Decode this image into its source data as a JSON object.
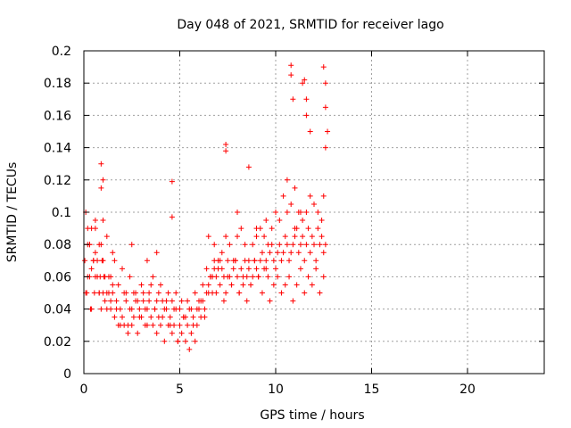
{
  "chart_data": {
    "type": "scatter",
    "title": "Day 048 of 2021, SRMTID for receiver lago",
    "xlabel": "GPS time / hours",
    "ylabel": "SRMTID / TECUs",
    "xlim": [
      0,
      24
    ],
    "ylim": [
      0,
      0.2
    ],
    "grid": true,
    "marker": "+",
    "colors": {
      "points": "#ff0000",
      "grid": "#a0a0a0",
      "axis": "#000000"
    },
    "x_ticks": [
      0,
      5,
      10,
      15,
      20
    ],
    "x_tick_labels": [
      "0",
      "5",
      "10",
      "15",
      "20"
    ],
    "y_ticks": [
      0,
      0.02,
      0.04,
      0.06,
      0.08,
      0.1,
      0.12,
      0.14,
      0.16,
      0.18,
      0.2
    ],
    "y_tick_labels": [
      "0",
      "0.02",
      "0.04",
      "0.06",
      "0.08",
      "0.1",
      "0.12",
      "0.14",
      "0.16",
      "0.18",
      "0.2"
    ],
    "series": [
      {
        "name": "SRMTID",
        "x": [
          0.05,
          0.1,
          0.15,
          0.2,
          0.3,
          0.35,
          0.4,
          0.5,
          0.55,
          0.6,
          0.7,
          0.8,
          0.85,
          0.9,
          0.95,
          1.0,
          1.05,
          1.1,
          1.2,
          1.3,
          1.4,
          1.5,
          1.6,
          1.7,
          1.8,
          1.9,
          2.0,
          2.1,
          2.2,
          2.3,
          2.4,
          2.5,
          2.6,
          2.7,
          2.8,
          2.9,
          3.0,
          3.1,
          3.2,
          3.3,
          3.4,
          3.5,
          3.6,
          3.7,
          3.8,
          3.9,
          4.0,
          4.1,
          4.2,
          4.3,
          4.4,
          4.5,
          4.6,
          4.7,
          4.8,
          4.9,
          5.0,
          5.1,
          5.2,
          5.3,
          5.4,
          5.5,
          5.6,
          5.7,
          5.8,
          5.9,
          6.0,
          6.1,
          6.2,
          6.3,
          6.4,
          6.5,
          6.6,
          6.7,
          6.8,
          6.9,
          7.0,
          7.1,
          7.2,
          7.3,
          7.4,
          7.5,
          7.6,
          7.7,
          7.8,
          7.9,
          8.0,
          8.1,
          8.2,
          8.3,
          8.4,
          8.5,
          8.6,
          8.7,
          8.8,
          8.9,
          9.0,
          9.1,
          9.2,
          9.3,
          9.4,
          9.5,
          9.6,
          9.7,
          9.8,
          9.9,
          10.0,
          10.1,
          10.2,
          10.3,
          10.4,
          10.5,
          10.6,
          10.7,
          10.8,
          10.9,
          11.0,
          11.1,
          11.2,
          11.3,
          11.4,
          11.5,
          11.6,
          11.7,
          11.8,
          11.9,
          12.0,
          12.1,
          12.2,
          12.3,
          12.4,
          12.5,
          12.6,
          0.1,
          0.2,
          0.3,
          0.4,
          0.5,
          0.6,
          0.7,
          0.8,
          0.9,
          1.0,
          1.1,
          1.2,
          1.3,
          1.4,
          1.5,
          1.7,
          1.9,
          2.1,
          2.3,
          2.5,
          2.7,
          2.9,
          3.1,
          3.3,
          3.5,
          3.7,
          3.9,
          4.1,
          4.3,
          4.5,
          4.7,
          4.9,
          5.1,
          5.3,
          5.5,
          5.7,
          5.9,
          6.1,
          6.3,
          6.5,
          6.7,
          6.9,
          7.1,
          7.3,
          7.5,
          7.7,
          7.9,
          8.1,
          8.3,
          8.5,
          8.7,
          8.9,
          9.1,
          9.3,
          9.5,
          9.7,
          9.9,
          10.1,
          10.3,
          10.5,
          10.7,
          10.9,
          11.1,
          11.3,
          11.5,
          11.7,
          11.9,
          12.1,
          12.3,
          12.5,
          0.9,
          0.9,
          1.0,
          4.6,
          4.6,
          7.4,
          7.4,
          8.6,
          10.8,
          10.8,
          10.9,
          11.4,
          11.5,
          11.6,
          11.6,
          11.8,
          12.5,
          12.6,
          12.6,
          12.7,
          12.6,
          10.6,
          11.0,
          11.3,
          12.5,
          8.0,
          9.0,
          9.5,
          6.5,
          6.8,
          3.8,
          3.3,
          2.5,
          1.5,
          0.6,
          0.3,
          0.2,
          0.4,
          0.6,
          0.8,
          1.0,
          1.2,
          1.4,
          1.6,
          1.8,
          2.0,
          2.2,
          2.4,
          2.6,
          2.8,
          3.0,
          3.2,
          3.4,
          3.6,
          3.8,
          4.0,
          4.2,
          4.4,
          4.6,
          4.8,
          5.0,
          5.2,
          5.4,
          5.6,
          5.8,
          6.0,
          6.2,
          6.4,
          6.6,
          6.8,
          7.0,
          7.2,
          7.4,
          7.6,
          7.8,
          8.0,
          8.2,
          8.4,
          8.6,
          8.8,
          9.0,
          9.2,
          9.4,
          9.6,
          9.8,
          10.0,
          10.2,
          10.4,
          10.6,
          10.8,
          11.0,
          11.2,
          11.4,
          11.6,
          11.8,
          12.0,
          12.2,
          12.4
        ],
        "y": [
          0.07,
          0.1,
          0.05,
          0.08,
          0.06,
          0.04,
          0.09,
          0.07,
          0.05,
          0.06,
          0.07,
          0.05,
          0.06,
          0.04,
          0.07,
          0.05,
          0.06,
          0.045,
          0.05,
          0.06,
          0.04,
          0.05,
          0.035,
          0.045,
          0.03,
          0.04,
          0.035,
          0.03,
          0.045,
          0.025,
          0.04,
          0.03,
          0.035,
          0.045,
          0.025,
          0.04,
          0.035,
          0.05,
          0.03,
          0.04,
          0.045,
          0.035,
          0.03,
          0.04,
          0.025,
          0.035,
          0.03,
          0.045,
          0.02,
          0.04,
          0.03,
          0.035,
          0.025,
          0.03,
          0.04,
          0.02,
          0.03,
          0.025,
          0.035,
          0.02,
          0.03,
          0.04,
          0.025,
          0.035,
          0.02,
          0.03,
          0.04,
          0.035,
          0.045,
          0.04,
          0.05,
          0.055,
          0.06,
          0.05,
          0.065,
          0.06,
          0.07,
          0.055,
          0.065,
          0.06,
          0.05,
          0.07,
          0.06,
          0.055,
          0.065,
          0.07,
          0.06,
          0.05,
          0.065,
          0.055,
          0.07,
          0.06,
          0.065,
          0.055,
          0.06,
          0.07,
          0.065,
          0.06,
          0.07,
          0.075,
          0.065,
          0.07,
          0.06,
          0.075,
          0.08,
          0.07,
          0.065,
          0.075,
          0.08,
          0.07,
          0.075,
          0.085,
          0.08,
          0.07,
          0.075,
          0.08,
          0.085,
          0.09,
          0.075,
          0.08,
          0.085,
          0.07,
          0.08,
          0.09,
          0.075,
          0.085,
          0.08,
          0.07,
          0.09,
          0.08,
          0.085,
          0.075,
          0.08,
          0.05,
          0.06,
          0.08,
          0.04,
          0.07,
          0.09,
          0.06,
          0.05,
          0.08,
          0.07,
          0.06,
          0.04,
          0.05,
          0.045,
          0.055,
          0.04,
          0.03,
          0.05,
          0.03,
          0.04,
          0.05,
          0.035,
          0.045,
          0.03,
          0.055,
          0.04,
          0.05,
          0.035,
          0.045,
          0.03,
          0.04,
          0.02,
          0.045,
          0.035,
          0.015,
          0.03,
          0.04,
          0.045,
          0.035,
          0.05,
          0.06,
          0.05,
          0.07,
          0.045,
          0.06,
          0.055,
          0.07,
          0.05,
          0.06,
          0.045,
          0.055,
          0.07,
          0.06,
          0.05,
          0.065,
          0.045,
          0.055,
          0.06,
          0.05,
          0.055,
          0.06,
          0.045,
          0.055,
          0.065,
          0.05,
          0.06,
          0.055,
          0.065,
          0.05,
          0.06,
          0.13,
          0.115,
          0.12,
          0.119,
          0.097,
          0.142,
          0.138,
          0.128,
          0.191,
          0.185,
          0.17,
          0.18,
          0.182,
          0.16,
          0.17,
          0.15,
          0.19,
          0.18,
          0.165,
          0.15,
          0.14,
          0.12,
          0.115,
          0.1,
          0.11,
          0.1,
          0.09,
          0.095,
          0.085,
          0.08,
          0.075,
          0.07,
          0.08,
          0.075,
          0.095,
          0.08,
          0.09,
          0.065,
          0.075,
          0.08,
          0.095,
          0.085,
          0.06,
          0.07,
          0.055,
          0.065,
          0.05,
          0.06,
          0.05,
          0.045,
          0.055,
          0.04,
          0.05,
          0.06,
          0.045,
          0.055,
          0.04,
          0.05,
          0.045,
          0.05,
          0.04,
          0.035,
          0.045,
          0.04,
          0.05,
          0.045,
          0.055,
          0.065,
          0.06,
          0.07,
          0.065,
          0.075,
          0.085,
          0.08,
          0.07,
          0.085,
          0.09,
          0.08,
          0.07,
          0.08,
          0.085,
          0.09,
          0.085,
          0.08,
          0.09,
          0.1,
          0.095,
          0.11,
          0.1,
          0.105,
          0.09,
          0.1,
          0.095,
          0.1,
          0.11,
          0.105,
          0.1,
          0.095
        ]
      }
    ]
  }
}
